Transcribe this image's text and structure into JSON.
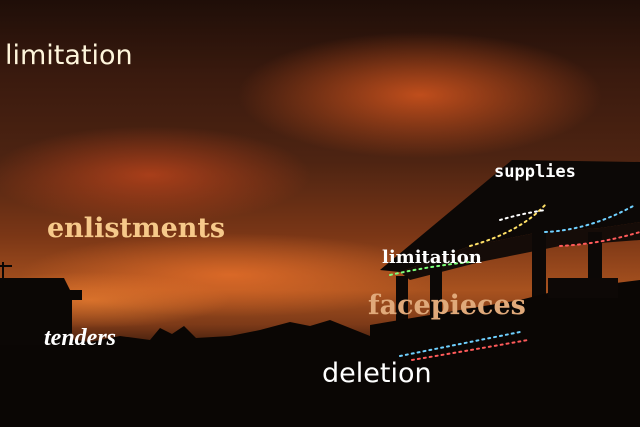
{
  "scene": {
    "colors": {
      "sky_top": "#1f0e08",
      "sky_glow": "#d6561e",
      "horizon": "#e9702a",
      "silhouette": "#0a0604",
      "string_lights": [
        "#ff5a5a",
        "#6fd0ff",
        "#ffe066",
        "#7dff7a",
        "#ffffff"
      ]
    }
  },
  "words": {
    "w1": "limitation",
    "w2": "enlistments",
    "w3": "supplies",
    "w4": "limitation",
    "w5": "facepieces",
    "w6": "tenders",
    "w7": "deletion"
  }
}
